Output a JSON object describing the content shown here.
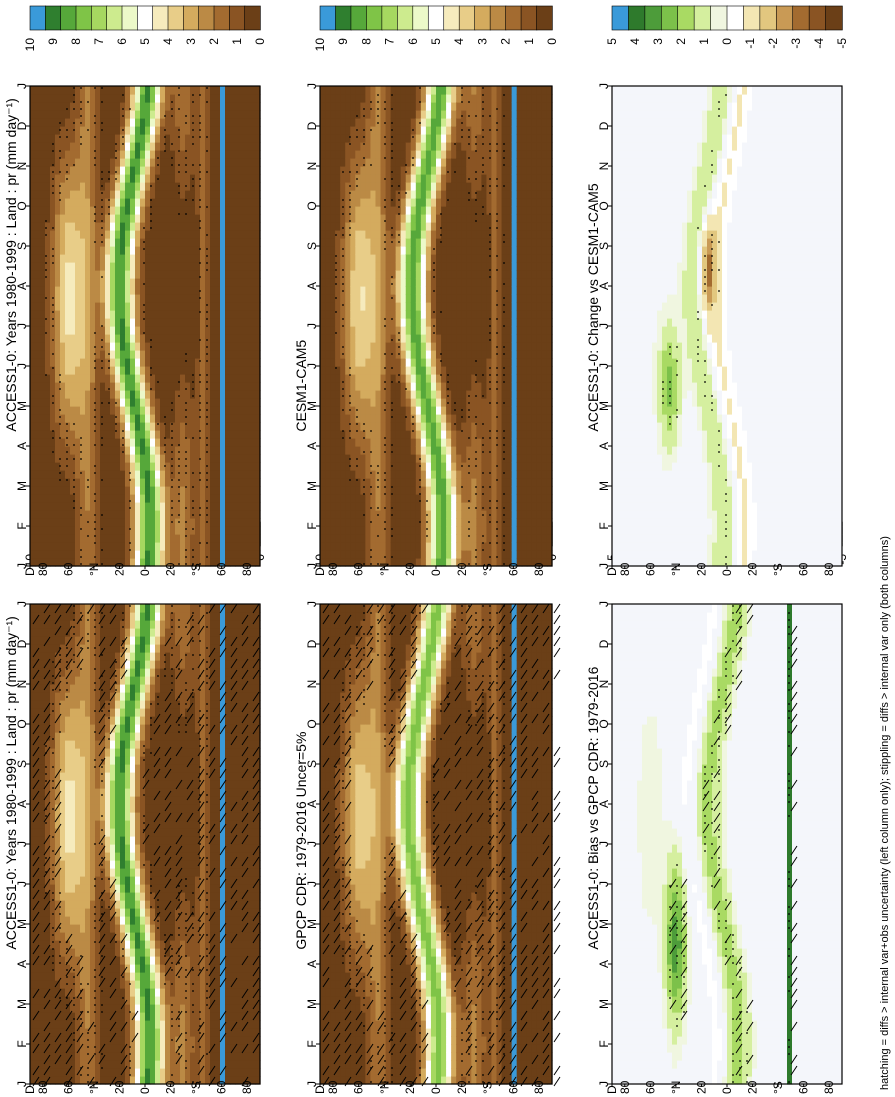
{
  "figure_footnote": "hatching = diffs > internal var+obs uncertainty (left column only); stippling = diffs > internal var only (both columns)",
  "palette": {
    "abs": [
      "#6b3f17",
      "#8a5423",
      "#a36b30",
      "#bb8a45",
      "#d4ab5e",
      "#e8cd88",
      "#f6ebbd",
      "#ffffff",
      "#ecf9c9",
      "#cdeb8e",
      "#a6d860",
      "#7fc447",
      "#56a83a",
      "#2f7f2f",
      "#3a9ad9"
    ],
    "diff": [
      "#6b3f17",
      "#8a5423",
      "#a36b30",
      "#c99a55",
      "#e2c77f",
      "#f3e6b3",
      "#ffffff",
      "#f0f6e0",
      "#d5ef9f",
      "#a9da63",
      "#7cc14a",
      "#4d9c3a",
      "#2e7a2c",
      "#3a9ad9"
    ],
    "diff_background": "#f4f6fb"
  },
  "chart_data": [
    {
      "id": "panel-top-left",
      "type": "heatmap",
      "title": "ACCESS1-0: Years 1980-1999 : Land : pr (mm day⁻¹)",
      "months": [
        "J",
        "F",
        "M",
        "A",
        "M",
        "J",
        "J",
        "A",
        "S",
        "O",
        "N",
        "D",
        "J"
      ],
      "latitude_ticks": [
        "D",
        "80",
        "60",
        "°N",
        "20",
        "0",
        "20",
        "°S",
        "60",
        "80"
      ],
      "latitude_range": [
        -90,
        90
      ],
      "field": "model",
      "hatching": true,
      "stippling": true,
      "colorbar_labels": [
        "10",
        "9",
        "8",
        "7",
        "6",
        "5",
        "4",
        "3",
        "2",
        "1",
        "0"
      ],
      "colorbar_range": [
        0,
        10
      ]
    },
    {
      "id": "panel-top-right",
      "type": "heatmap",
      "title": "ACCESS1-0: Years 1980-1999 : Land : pr (mm day⁻¹)",
      "months": [
        "J",
        "F",
        "M",
        "A",
        "M",
        "J",
        "J",
        "A",
        "S",
        "O",
        "N",
        "D",
        "J"
      ],
      "latitude_ticks": [
        "D",
        "80",
        "60",
        "°N",
        "20",
        "0",
        "20",
        "°S",
        "60",
        "80"
      ],
      "latitude_range": [
        -90,
        90
      ],
      "field": "model",
      "hatching": false,
      "stippling": true,
      "colorbar_labels": [
        "10",
        "9",
        "8",
        "7",
        "6",
        "5",
        "4",
        "3",
        "2",
        "1",
        "0"
      ],
      "colorbar_range": [
        0,
        10
      ]
    },
    {
      "id": "panel-middle-left",
      "type": "heatmap",
      "title": "GPCP CDR: 1979-2016 Uncer=5%",
      "months": [
        "J",
        "F",
        "M",
        "A",
        "M",
        "J",
        "J",
        "A",
        "S",
        "O",
        "N",
        "D",
        "J"
      ],
      "latitude_ticks": [
        "D",
        "80",
        "60",
        "°N",
        "20",
        "0",
        "20",
        "°S",
        "60",
        "80"
      ],
      "latitude_range": [
        -90,
        90
      ],
      "field": "obs",
      "hatching": true,
      "stippling": true,
      "colorbar_labels": [
        "10",
        "9",
        "8",
        "7",
        "6",
        "5",
        "4",
        "3",
        "2",
        "1",
        "0"
      ],
      "colorbar_range": [
        0,
        10
      ]
    },
    {
      "id": "panel-middle-right",
      "type": "heatmap",
      "title": "CESM1-CAM5",
      "months": [
        "J",
        "F",
        "M",
        "A",
        "M",
        "J",
        "J",
        "A",
        "S",
        "O",
        "N",
        "D",
        "J"
      ],
      "latitude_ticks": [
        "D",
        "80",
        "60",
        "°N",
        "20",
        "0",
        "20",
        "°S",
        "60",
        "80"
      ],
      "latitude_range": [
        -90,
        90
      ],
      "field": "cesm",
      "hatching": false,
      "stippling": true,
      "colorbar_labels": [
        "10",
        "9",
        "8",
        "7",
        "6",
        "5",
        "4",
        "3",
        "2",
        "1",
        "0"
      ],
      "colorbar_range": [
        0,
        10
      ]
    },
    {
      "id": "panel-bottom-left",
      "type": "heatmap",
      "title": "ACCESS1-0: Bias vs GPCP CDR: 1979-2016",
      "months": [
        "J",
        "F",
        "M",
        "A",
        "M",
        "J",
        "J",
        "A",
        "S",
        "O",
        "N",
        "D",
        "J"
      ],
      "latitude_ticks": [
        "D",
        "80",
        "60",
        "°N",
        "20",
        "0",
        "20",
        "°S",
        "60",
        "80"
      ],
      "latitude_range": [
        -90,
        90
      ],
      "field": "bias",
      "hatching": true,
      "stippling": true,
      "colorbar_labels": [
        "5",
        "4",
        "3",
        "2",
        "1",
        "0",
        "-1",
        "-2",
        "-3",
        "-4",
        "-5"
      ],
      "colorbar_range": [
        -5,
        5
      ]
    },
    {
      "id": "panel-bottom-right",
      "type": "heatmap",
      "title": "ACCESS1-0: Change vs CESM1-CAM5",
      "months": [
        "J",
        "F",
        "M",
        "A",
        "M",
        "J",
        "J",
        "A",
        "S",
        "O",
        "N",
        "D",
        "J"
      ],
      "latitude_ticks": [
        "D",
        "80",
        "60",
        "°N",
        "20",
        "0",
        "20",
        "°S",
        "60",
        "80"
      ],
      "latitude_range": [
        -90,
        90
      ],
      "field": "change",
      "hatching": false,
      "stippling": true,
      "colorbar_labels": [
        "5",
        "4",
        "3",
        "2",
        "1",
        "0",
        "-1",
        "-2",
        "-3",
        "-4",
        "-5"
      ],
      "colorbar_range": [
        -5,
        5
      ]
    }
  ]
}
